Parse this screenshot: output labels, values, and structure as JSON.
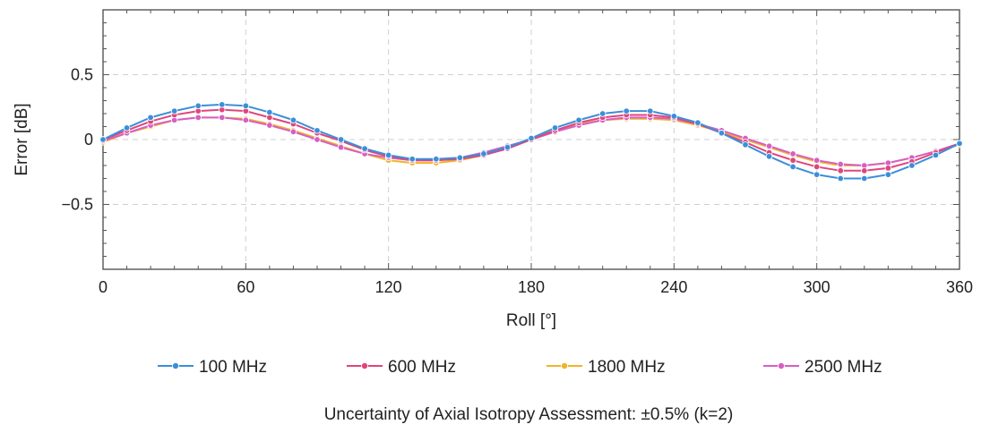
{
  "chart_data": {
    "type": "line",
    "title": "",
    "xlabel": "Roll [°]",
    "ylabel": "Error [dB]",
    "xlim": [
      0,
      360
    ],
    "ylim": [
      -1,
      1
    ],
    "xticks": [
      0,
      60,
      120,
      180,
      240,
      300,
      360
    ],
    "xtick_labels": [
      "0",
      "60",
      "120",
      "180",
      "240",
      "300",
      "360"
    ],
    "yticks": [
      -0.5,
      0,
      0.5
    ],
    "ytick_labels": [
      "−0.5",
      "0",
      "0.5"
    ],
    "grid": true,
    "legend_position": "bottom",
    "x": [
      0,
      10,
      20,
      30,
      40,
      50,
      60,
      70,
      80,
      90,
      100,
      110,
      120,
      130,
      140,
      150,
      160,
      170,
      180,
      190,
      200,
      210,
      220,
      230,
      240,
      250,
      260,
      270,
      280,
      290,
      300,
      310,
      320,
      330,
      340,
      350,
      360
    ],
    "series": [
      {
        "name": "100 MHz",
        "color": "#3b8fd9",
        "values": [
          0.0,
          0.09,
          0.17,
          0.22,
          0.26,
          0.27,
          0.26,
          0.21,
          0.15,
          0.07,
          0.0,
          -0.07,
          -0.12,
          -0.15,
          -0.15,
          -0.14,
          -0.11,
          -0.06,
          0.01,
          0.09,
          0.15,
          0.2,
          0.22,
          0.22,
          0.18,
          0.13,
          0.05,
          -0.04,
          -0.13,
          -0.21,
          -0.27,
          -0.3,
          -0.3,
          -0.27,
          -0.2,
          -0.12,
          -0.03
        ]
      },
      {
        "name": "600 MHz",
        "color": "#e0457b",
        "values": [
          0.0,
          0.07,
          0.14,
          0.19,
          0.22,
          0.23,
          0.22,
          0.17,
          0.12,
          0.05,
          -0.01,
          -0.08,
          -0.13,
          -0.16,
          -0.16,
          -0.15,
          -0.12,
          -0.07,
          0.0,
          0.07,
          0.13,
          0.17,
          0.19,
          0.19,
          0.17,
          0.12,
          0.05,
          -0.02,
          -0.1,
          -0.16,
          -0.21,
          -0.24,
          -0.24,
          -0.22,
          -0.17,
          -0.1,
          -0.03
        ]
      },
      {
        "name": "1800 MHz",
        "color": "#f0b429",
        "values": [
          -0.02,
          0.05,
          0.1,
          0.15,
          0.17,
          0.17,
          0.16,
          0.12,
          0.07,
          0.01,
          -0.05,
          -0.11,
          -0.16,
          -0.18,
          -0.18,
          -0.16,
          -0.12,
          -0.06,
          0.01,
          0.07,
          0.12,
          0.15,
          0.16,
          0.16,
          0.15,
          0.11,
          0.06,
          0.0,
          -0.06,
          -0.12,
          -0.17,
          -0.2,
          -0.2,
          -0.18,
          -0.14,
          -0.09,
          -0.04
        ]
      },
      {
        "name": "2500 MHz",
        "color": "#d65fc4",
        "values": [
          -0.01,
          0.05,
          0.11,
          0.15,
          0.17,
          0.17,
          0.15,
          0.11,
          0.06,
          0.0,
          -0.06,
          -0.11,
          -0.14,
          -0.16,
          -0.16,
          -0.14,
          -0.1,
          -0.05,
          0.0,
          0.06,
          0.11,
          0.15,
          0.17,
          0.17,
          0.16,
          0.12,
          0.07,
          0.01,
          -0.05,
          -0.11,
          -0.16,
          -0.19,
          -0.2,
          -0.18,
          -0.14,
          -0.09,
          -0.03
        ]
      }
    ],
    "note": "Uncertainty of Axial Isotropy Assessment: ±0.5% (k=2)"
  }
}
